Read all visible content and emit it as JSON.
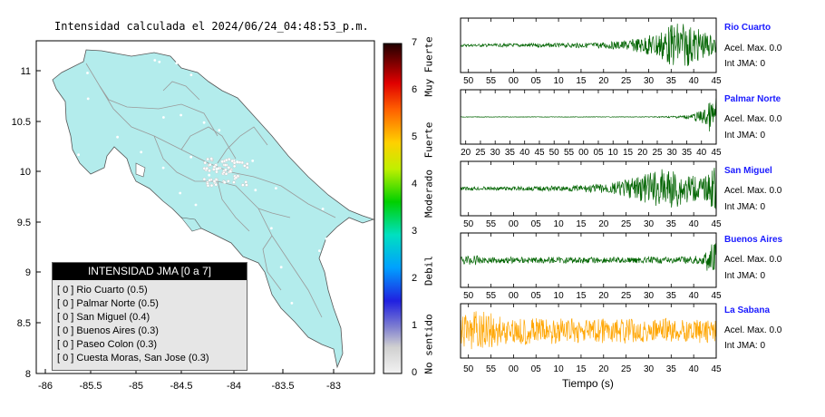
{
  "map": {
    "title": "Intensidad calculada el 2024/06/24_04:48:53_p.m.",
    "x_ticks": [
      "-86",
      "-85.5",
      "-85",
      "-84.5",
      "-84",
      "-83.5",
      "-83"
    ],
    "y_ticks": [
      "11",
      "10.5",
      "10",
      "9.5",
      "9",
      "8.5",
      "8"
    ],
    "land_color": "#b3ecec"
  },
  "legend": {
    "title": "INTENSIDAD JMA [0 a 7]",
    "items": [
      {
        "label": "[ 0 ]  Rio Cuarto (0.5)"
      },
      {
        "label": "[ 0 ]  Palmar Norte (0.5)"
      },
      {
        "label": "[ 0 ]  San Miguel (0.4)"
      },
      {
        "label": "[ 0 ]  Buenos Aires (0.3)"
      },
      {
        "label": "[ 0 ]  Paseo Colon (0.3)"
      },
      {
        "label": "[ 0 ]  Cuesta Moras, San Jose (0.3)"
      }
    ]
  },
  "colorbar": {
    "ticks": [
      "0",
      "1",
      "2",
      "3",
      "4",
      "5",
      "6",
      "7"
    ],
    "categories": [
      "No sentido",
      "Debil",
      "Moderado",
      "Fuerte",
      "Muy Fuerte"
    ]
  },
  "waveforms": {
    "x_axis_label": "Tiempo (s)",
    "stations": [
      {
        "name": "Rio Cuarto",
        "accel": "Acel. Max. 0.0",
        "jma": "Int JMA: 0",
        "color": "#006400",
        "ticks": [
          "50",
          "55",
          "00",
          "05",
          "10",
          "15",
          "20",
          "25",
          "30",
          "35",
          "40",
          "45"
        ]
      },
      {
        "name": "Palmar Norte",
        "accel": "Acel. Max. 0.0",
        "jma": "Int JMA: 0",
        "color": "#006400",
        "ticks": [
          "20",
          "25",
          "30",
          "35",
          "40",
          "45",
          "50",
          "55",
          "00",
          "05",
          "10",
          "15",
          "20",
          "25",
          "30",
          "35",
          "40",
          "45"
        ]
      },
      {
        "name": "San Miguel",
        "accel": "Acel. Max. 0.0",
        "jma": "Int JMA: 0",
        "color": "#006400",
        "ticks": [
          "50",
          "55",
          "00",
          "05",
          "10",
          "15",
          "20",
          "25",
          "30",
          "35",
          "40",
          "45"
        ]
      },
      {
        "name": "Buenos Aires",
        "accel": "Acel. Max. 0.0",
        "jma": "Int JMA: 0",
        "color": "#006400",
        "ticks": [
          "50",
          "55",
          "00",
          "05",
          "10",
          "15",
          "20",
          "25",
          "30",
          "35",
          "40",
          "45"
        ]
      },
      {
        "name": "La Sabana",
        "accel": "Acel. Max. 0.0",
        "jma": "Int JMA: 0",
        "color": "#ffa500",
        "ticks": [
          "50",
          "55",
          "00",
          "05",
          "10",
          "15",
          "20",
          "25",
          "30",
          "35",
          "40",
          "45"
        ]
      }
    ]
  },
  "chart_data": [
    {
      "type": "scatter",
      "title": "Intensidad calculada el 2024/06/24_04:48:53_p.m.",
      "xlim": [
        -86,
        -82.6
      ],
      "ylim": [
        8,
        11.3
      ],
      "xticks": [
        -86,
        -85.5,
        -85,
        -84.5,
        -84,
        -83.5,
        -83
      ],
      "yticks": [
        8,
        8.5,
        9,
        9.5,
        10,
        10.5,
        11
      ]
    },
    {
      "type": "heatmap",
      "ylim": [
        0,
        7
      ],
      "yticks": [
        0,
        1,
        2,
        3,
        4,
        5,
        6,
        7
      ],
      "categories": [
        "No sentido",
        "Debil",
        "Moderado",
        "Fuerte",
        "Muy Fuerte"
      ]
    },
    {
      "type": "line",
      "xlabel": "Tiempo (s)",
      "series": [
        {
          "name": "Rio Cuarto",
          "envelope": [
            0.05,
            0.05,
            0.06,
            0.06,
            0.07,
            0.07,
            0.08,
            0.08,
            0.08,
            0.1,
            0.1,
            0.12,
            0.15,
            0.2,
            0.3,
            0.45,
            0.7,
            0.95,
            0.8,
            0.55,
            0.35
          ]
        },
        {
          "name": "Palmar Norte",
          "envelope": [
            0.01,
            0.01,
            0.01,
            0.01,
            0.01,
            0.01,
            0.01,
            0.01,
            0.01,
            0.01,
            0.01,
            0.01,
            0.01,
            0.01,
            0.01,
            0.02,
            0.03,
            0.05,
            0.1,
            0.3,
            0.9
          ]
        },
        {
          "name": "San Miguel",
          "envelope": [
            0.06,
            0.07,
            0.07,
            0.07,
            0.08,
            0.08,
            0.09,
            0.1,
            0.1,
            0.12,
            0.15,
            0.18,
            0.25,
            0.35,
            0.5,
            0.65,
            0.8,
            0.75,
            0.55,
            0.4,
            0.95
          ]
        },
        {
          "name": "Buenos Aires",
          "envelope": [
            0.15,
            0.2,
            0.12,
            0.12,
            0.13,
            0.13,
            0.12,
            0.12,
            0.12,
            0.13,
            0.12,
            0.12,
            0.13,
            0.12,
            0.12,
            0.13,
            0.12,
            0.13,
            0.15,
            0.2,
            0.95
          ]
        },
        {
          "name": "La Sabana",
          "envelope": [
            0.6,
            0.8,
            0.95,
            0.6,
            0.5,
            0.55,
            0.5,
            0.55,
            0.5,
            0.5,
            0.45,
            0.5,
            0.45,
            0.5,
            0.45,
            0.45,
            0.5,
            0.45,
            0.45,
            0.5,
            0.45
          ]
        }
      ]
    }
  ]
}
